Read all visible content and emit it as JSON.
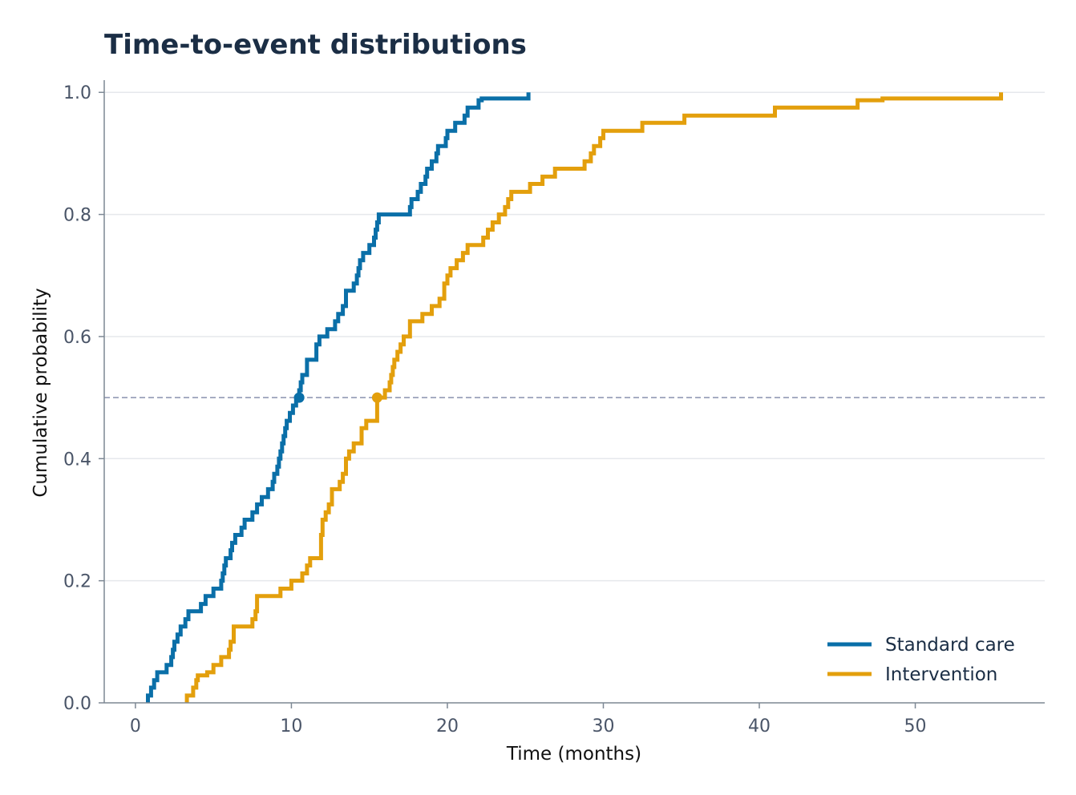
{
  "colors": {
    "standard": "#0a6fa8",
    "intervention": "#e39f0c",
    "grid": "#e6e8ec",
    "axis": "#7d8894",
    "reference": "#9aa1ba"
  },
  "chart_data": {
    "type": "line",
    "step": true,
    "title": "Time-to-event distributions",
    "xlabel": "Time (months)",
    "ylabel": "Cumulative probability",
    "xlim": [
      -2,
      58.3
    ],
    "ylim": [
      0,
      1.02
    ],
    "xticks": [
      0,
      10,
      20,
      30,
      40,
      50
    ],
    "yticks": [
      0.0,
      0.2,
      0.4,
      0.6,
      0.8,
      1.0
    ],
    "xtick_labels": [
      "0",
      "10",
      "20",
      "30",
      "40",
      "50"
    ],
    "ytick_labels": [
      "0.0",
      "0.2",
      "0.4",
      "0.6",
      "0.8",
      "1.0"
    ],
    "grid": "horizontal",
    "reference_line": {
      "y": 0.5,
      "style": "dashed"
    },
    "legend": {
      "position": "bottom-right",
      "entries": [
        "Standard care",
        "Intervention"
      ]
    },
    "medians": [
      {
        "series": "Standard care",
        "x": 10.5,
        "y": 0.5
      },
      {
        "series": "Intervention",
        "x": 15.5,
        "y": 0.5
      }
    ],
    "series": [
      {
        "name": "Standard care",
        "color": "#0a6fa8",
        "x": [
          0.8,
          1.0,
          1.2,
          1.4,
          2.0,
          2.3,
          2.4,
          2.5,
          2.7,
          2.9,
          3.2,
          3.4,
          4.2,
          4.5,
          5.0,
          5.5,
          5.6,
          5.7,
          5.8,
          6.1,
          6.2,
          6.4,
          6.8,
          7.0,
          7.5,
          7.8,
          8.1,
          8.5,
          8.8,
          8.9,
          9.1,
          9.2,
          9.3,
          9.4,
          9.5,
          9.6,
          9.7,
          9.9,
          10.1,
          10.3,
          10.5,
          10.6,
          10.7,
          11.0,
          11.6,
          11.8,
          12.3,
          12.8,
          13.0,
          13.3,
          13.5,
          14.0,
          14.2,
          14.3,
          14.4,
          14.6,
          15.0,
          15.3,
          15.4,
          15.5,
          15.6,
          17.6,
          17.7,
          18.1,
          18.3,
          18.6,
          18.7,
          19.0,
          19.3,
          19.4,
          19.9,
          20.0,
          20.5,
          21.1,
          21.3,
          22.0,
          22.2,
          25.2
        ],
        "y": [
          0.012,
          0.025,
          0.037,
          0.05,
          0.062,
          0.075,
          0.087,
          0.1,
          0.112,
          0.125,
          0.137,
          0.15,
          0.162,
          0.175,
          0.187,
          0.2,
          0.212,
          0.225,
          0.237,
          0.25,
          0.262,
          0.275,
          0.287,
          0.3,
          0.312,
          0.325,
          0.337,
          0.35,
          0.362,
          0.375,
          0.387,
          0.4,
          0.412,
          0.425,
          0.437,
          0.45,
          0.462,
          0.475,
          0.487,
          0.5,
          0.512,
          0.525,
          0.537,
          0.562,
          0.587,
          0.6,
          0.612,
          0.625,
          0.637,
          0.65,
          0.675,
          0.687,
          0.7,
          0.712,
          0.725,
          0.737,
          0.75,
          0.762,
          0.775,
          0.787,
          0.8,
          0.812,
          0.825,
          0.837,
          0.85,
          0.862,
          0.875,
          0.887,
          0.9,
          0.912,
          0.925,
          0.937,
          0.95,
          0.962,
          0.975,
          0.987,
          0.99,
          1.0
        ]
      },
      {
        "name": "Intervention",
        "color": "#e39f0c",
        "x": [
          3.3,
          3.7,
          3.9,
          4.0,
          4.6,
          5.0,
          5.5,
          6.0,
          6.1,
          6.3,
          7.5,
          7.7,
          7.8,
          9.3,
          10.0,
          10.7,
          11.0,
          11.2,
          11.9,
          12.0,
          12.2,
          12.4,
          12.6,
          13.1,
          13.3,
          13.5,
          13.7,
          14.0,
          14.5,
          14.8,
          15.5,
          16.0,
          16.3,
          16.4,
          16.5,
          16.6,
          16.8,
          17.0,
          17.2,
          17.6,
          18.4,
          19.0,
          19.5,
          19.8,
          20.0,
          20.2,
          20.6,
          21.0,
          21.3,
          22.3,
          22.6,
          22.9,
          23.3,
          23.7,
          23.9,
          24.1,
          25.3,
          26.1,
          26.9,
          28.8,
          29.2,
          29.4,
          29.8,
          30.0,
          32.5,
          35.2,
          41.0,
          46.3,
          47.9,
          55.5
        ],
        "y": [
          0.012,
          0.025,
          0.037,
          0.045,
          0.05,
          0.062,
          0.075,
          0.087,
          0.1,
          0.125,
          0.137,
          0.15,
          0.175,
          0.187,
          0.2,
          0.212,
          0.225,
          0.237,
          0.275,
          0.3,
          0.312,
          0.325,
          0.35,
          0.362,
          0.375,
          0.4,
          0.412,
          0.425,
          0.45,
          0.462,
          0.5,
          0.512,
          0.525,
          0.537,
          0.55,
          0.562,
          0.575,
          0.587,
          0.6,
          0.625,
          0.637,
          0.65,
          0.662,
          0.687,
          0.7,
          0.712,
          0.725,
          0.737,
          0.75,
          0.762,
          0.775,
          0.787,
          0.8,
          0.812,
          0.825,
          0.837,
          0.85,
          0.862,
          0.875,
          0.887,
          0.9,
          0.912,
          0.925,
          0.937,
          0.95,
          0.962,
          0.975,
          0.987,
          0.99,
          1.0
        ]
      }
    ]
  }
}
